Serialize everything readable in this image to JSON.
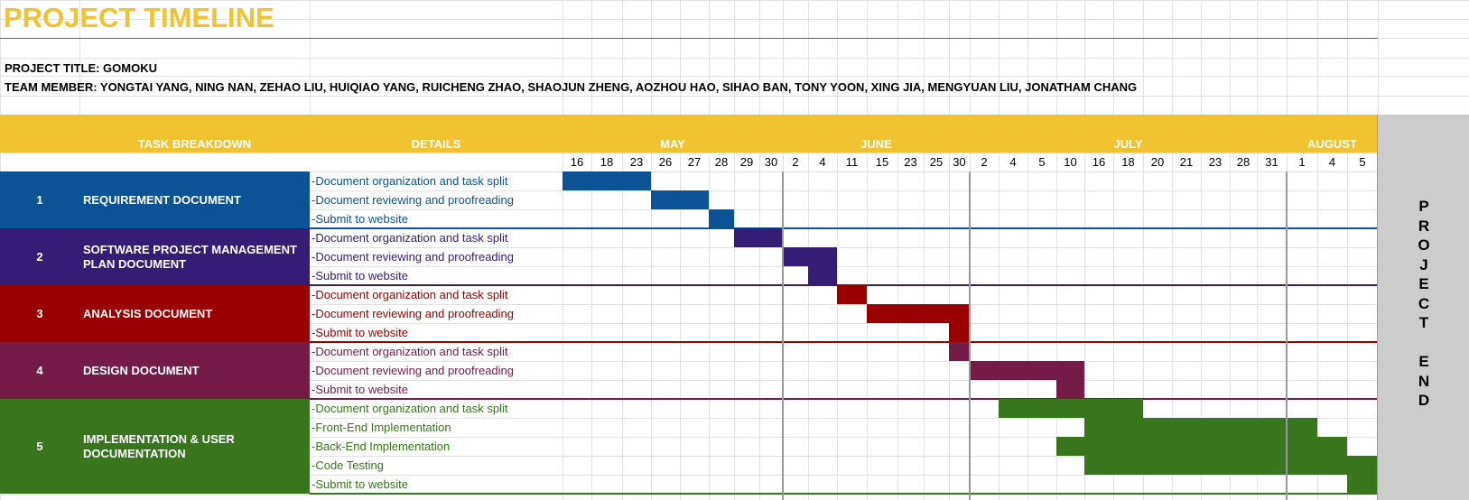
{
  "title": "PROJECT TIMELINE",
  "project_title": "PROJECT TITLE: GOMOKU",
  "team_members": "TEAM MEMBER: YONGTAI YANG, NING NAN, ZEHAO LIU, HUIQIAO YANG, RUICHENG ZHAO, SHAOJUN ZHENG, AOZHOU HAO, SIHAO BAN, TONY YOON, XING JIA, MENGYUAN LIU, JONATHAM CHANG",
  "headers": {
    "task_breakdown": "TASK BREAKDOWN",
    "details": "DETAILS"
  },
  "months": [
    {
      "name": "MAY",
      "dates": [
        "16",
        "18",
        "23",
        "26",
        "27",
        "28",
        "29",
        "30"
      ]
    },
    {
      "name": "JUNE",
      "dates": [
        "2",
        "4",
        "11",
        "15",
        "23",
        "25",
        "30"
      ]
    },
    {
      "name": "JULY",
      "dates": [
        "2",
        "4",
        "5",
        "10",
        "16",
        "18",
        "20",
        "21",
        "23",
        "28",
        "31"
      ]
    },
    {
      "name": "AUGUST",
      "dates": [
        "1",
        "4",
        "5"
      ]
    }
  ],
  "phases": [
    {
      "number": "1",
      "name": "REQUIREMENT DOCUMENT",
      "color": "#0b5394",
      "tasks": [
        "-Document organization and task split",
        "-Document reviewing and proofreading",
        "-Submit to website"
      ]
    },
    {
      "number": "2",
      "name": "SOFTWARE PROJECT MANAGEMENT PLAN DOCUMENT",
      "color": "#351c75",
      "tasks": [
        "-Document organization and task split",
        "-Document reviewing and proofreading",
        "-Submit to website"
      ]
    },
    {
      "number": "3",
      "name": "ANALYSIS DOCUMENT",
      "color": "#990000",
      "tasks": [
        "-Document organization and task split",
        "-Document reviewing and proofreading",
        "-Submit to website"
      ]
    },
    {
      "number": "4",
      "name": "DESIGN DOCUMENT",
      "color": "#741b47",
      "tasks": [
        "-Document organization and task split",
        "-Document reviewing and proofreading",
        "-Submit to website"
      ]
    },
    {
      "number": "5",
      "name": "IMPLEMENTATION  & USER DOCUMENTATION",
      "color": "#38761d",
      "tasks": [
        "-Document organization and task split",
        "-Front-End Implementation",
        "-Back-End Implementation",
        "-Code Testing",
        "-Submit to website"
      ]
    }
  ],
  "project_end": "PROJECT END"
}
